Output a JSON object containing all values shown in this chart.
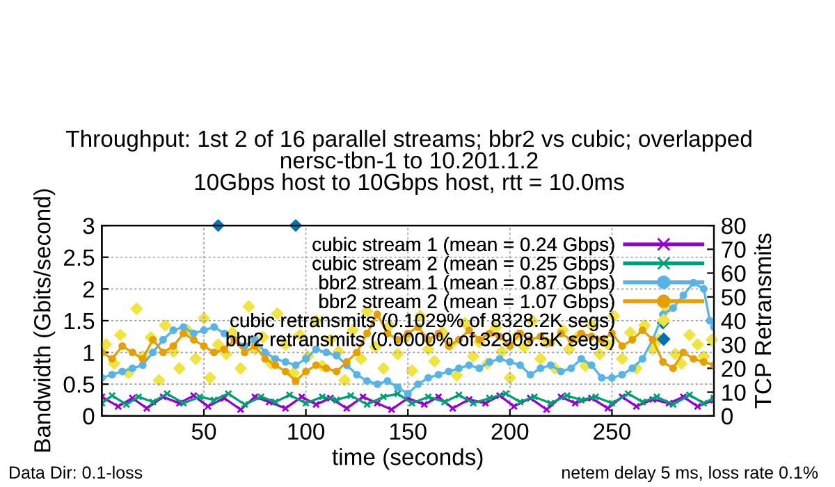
{
  "chart_data": {
    "type": "line",
    "title": "Throughput: 1st 2 of 16 parallel streams; bbr2 vs cubic; overlapped\nnersc-tbn-1 to 10.201.1.2\n10Gbps host to 10Gbps host, rtt = 10.0ms",
    "xlabel": "time (seconds)",
    "ylabel": "Bandwidth (Gbits/second)",
    "y2label": "TCP Retransmits",
    "xlim": [
      0,
      300
    ],
    "xticks": [
      50,
      100,
      150,
      200,
      250
    ],
    "ylim": [
      0,
      3
    ],
    "yticks": [
      0,
      0.5,
      1,
      1.5,
      2,
      2.5,
      3
    ],
    "y2lim": [
      0,
      80
    ],
    "y2ticks": [
      0,
      10,
      20,
      30,
      40,
      50,
      60,
      70,
      80
    ],
    "grid": true,
    "legend": "top right",
    "line_style": "solid",
    "annotations": [
      "Data Dir: 0.1-loss",
      "netem delay 5 ms, loss rate 0.1%"
    ],
    "series": [
      {
        "name": "cubic stream 1 (mean = 0.24 Gbps)",
        "color": "#9400d3",
        "marker": "cross",
        "x": [
          0,
          8,
          15,
          22,
          30,
          38,
          45,
          52,
          60,
          68,
          75,
          82,
          90,
          98,
          105,
          112,
          120,
          128,
          135,
          142,
          150,
          158,
          165,
          172,
          180,
          188,
          195,
          202,
          210,
          218,
          225,
          232,
          240,
          248,
          255,
          262,
          270,
          278,
          285,
          292,
          300
        ],
        "values": [
          0.3,
          0.15,
          0.28,
          0.12,
          0.3,
          0.2,
          0.32,
          0.15,
          0.28,
          0.1,
          0.3,
          0.22,
          0.12,
          0.3,
          0.18,
          0.28,
          0.12,
          0.3,
          0.2,
          0.1,
          0.28,
          0.18,
          0.3,
          0.12,
          0.26,
          0.2,
          0.32,
          0.15,
          0.28,
          0.1,
          0.3,
          0.2,
          0.28,
          0.12,
          0.3,
          0.15,
          0.26,
          0.2,
          0.3,
          0.15,
          0.25
        ]
      },
      {
        "name": "cubic stream 2 (mean = 0.25 Gbps)",
        "color": "#009e73",
        "marker": "cross",
        "x": [
          0,
          5,
          12,
          18,
          25,
          32,
          40,
          48,
          55,
          62,
          70,
          78,
          85,
          92,
          100,
          108,
          115,
          122,
          130,
          138,
          145,
          152,
          160,
          168,
          175,
          182,
          190,
          198,
          205,
          212,
          220,
          228,
          235,
          242,
          250,
          258,
          265,
          272,
          280,
          288,
          295,
          300
        ],
        "values": [
          0.2,
          0.32,
          0.18,
          0.3,
          0.22,
          0.35,
          0.2,
          0.3,
          0.25,
          0.35,
          0.18,
          0.3,
          0.22,
          0.33,
          0.2,
          0.3,
          0.25,
          0.32,
          0.18,
          0.3,
          0.35,
          0.2,
          0.3,
          0.22,
          0.33,
          0.2,
          0.28,
          0.35,
          0.22,
          0.3,
          0.2,
          0.32,
          0.25,
          0.3,
          0.2,
          0.35,
          0.22,
          0.3,
          0.18,
          0.33,
          0.2,
          0.28
        ]
      },
      {
        "name": "bbr2 stream 1 (mean = 0.87 Gbps)",
        "color": "#56b4e9",
        "marker": "circle",
        "x": [
          0,
          5,
          10,
          15,
          20,
          25,
          30,
          35,
          40,
          45,
          50,
          55,
          60,
          65,
          70,
          75,
          80,
          85,
          90,
          95,
          100,
          105,
          110,
          115,
          120,
          125,
          130,
          135,
          140,
          145,
          150,
          155,
          160,
          165,
          170,
          175,
          180,
          185,
          190,
          195,
          200,
          205,
          210,
          215,
          220,
          225,
          230,
          235,
          240,
          245,
          250,
          255,
          260,
          265,
          270,
          275,
          280,
          285,
          290,
          295,
          298,
          300
        ],
        "values": [
          0.6,
          0.65,
          0.7,
          0.75,
          0.8,
          1.0,
          1.2,
          1.35,
          1.4,
          1.3,
          1.35,
          1.4,
          1.3,
          1.2,
          1.1,
          1.2,
          1.0,
          0.9,
          0.85,
          0.8,
          0.9,
          1.05,
          1.0,
          0.95,
          0.8,
          0.65,
          0.55,
          0.5,
          0.55,
          0.45,
          0.35,
          0.5,
          0.6,
          0.65,
          0.7,
          0.75,
          0.8,
          0.75,
          0.85,
          0.9,
          0.85,
          0.8,
          0.65,
          0.75,
          0.8,
          0.7,
          0.75,
          0.9,
          0.8,
          0.6,
          0.6,
          0.65,
          0.75,
          0.9,
          1.2,
          1.6,
          1.7,
          1.9,
          2.1,
          2.0,
          1.5,
          1.4
        ]
      },
      {
        "name": "bbr2 stream 2 (mean = 1.07 Gbps)",
        "color": "#e69f00",
        "marker": "circle",
        "x": [
          0,
          5,
          10,
          15,
          20,
          25,
          30,
          35,
          40,
          45,
          50,
          55,
          60,
          65,
          70,
          75,
          80,
          85,
          90,
          95,
          100,
          105,
          110,
          115,
          120,
          125,
          130,
          135,
          140,
          145,
          150,
          155,
          160,
          165,
          170,
          175,
          180,
          185,
          190,
          195,
          200,
          205,
          210,
          215,
          220,
          225,
          230,
          235,
          240,
          245,
          250,
          255,
          260,
          265,
          270,
          275,
          280,
          285,
          290,
          295,
          300
        ],
        "values": [
          1.0,
          0.9,
          1.1,
          1.0,
          0.9,
          1.2,
          1.0,
          1.1,
          1.3,
          1.2,
          1.1,
          1.0,
          1.05,
          1.2,
          1.0,
          1.1,
          0.9,
          0.8,
          0.7,
          0.55,
          0.7,
          0.8,
          0.75,
          0.7,
          0.85,
          1.0,
          1.3,
          1.6,
          1.3,
          1.2,
          1.3,
          1.4,
          1.2,
          1.3,
          1.1,
          1.2,
          1.35,
          1.2,
          1.3,
          1.25,
          1.1,
          1.3,
          1.2,
          1.25,
          1.15,
          1.3,
          1.2,
          1.3,
          1.25,
          1.2,
          1.3,
          1.1,
          1.2,
          1.35,
          1.2,
          0.85,
          0.75,
          1.0,
          0.9,
          0.85,
          0.8
        ]
      },
      {
        "name": "cubic retransmits (0.1029% of 8328.2K segs)",
        "color": "#f0e442",
        "type": "scatter",
        "marker": "diamond",
        "axis": "y2",
        "x": [
          2,
          6,
          9,
          13,
          17,
          20,
          24,
          28,
          31,
          35,
          38,
          42,
          46,
          50,
          53,
          57,
          61,
          64,
          68,
          72,
          75,
          79,
          83,
          86,
          90,
          94,
          97,
          101,
          105,
          108,
          112,
          116,
          119,
          123,
          127,
          130,
          134,
          138,
          141,
          145,
          149,
          152,
          156,
          160,
          163,
          167,
          171,
          174,
          178,
          182,
          185,
          189,
          193,
          196,
          200,
          204,
          207,
          211,
          215,
          218,
          222,
          226,
          229,
          233,
          237,
          240,
          244,
          248,
          251,
          255,
          259,
          262,
          266,
          270,
          273,
          277,
          281,
          284,
          288,
          292,
          295,
          299
        ],
        "values": [
          30,
          22,
          34,
          18,
          45,
          25,
          33,
          15,
          38,
          27,
          20,
          36,
          24,
          41,
          16,
          30,
          26,
          35,
          20,
          46,
          28,
          33,
          22,
          43,
          30,
          18,
          34,
          25,
          40,
          21,
          32,
          27,
          15,
          36,
          24,
          44,
          29,
          20,
          38,
          26,
          33,
          19,
          42,
          28,
          23,
          35,
          30,
          17,
          39,
          25,
          31,
          22,
          37,
          27,
          16,
          34,
          29,
          40,
          24,
          31,
          20,
          36,
          28,
          33,
          21,
          38,
          26,
          30,
          42,
          24,
          35,
          20,
          38,
          28,
          32,
          45,
          26,
          22,
          34,
          30,
          25,
          32
        ]
      },
      {
        "name": "bbr2 retransmits (0.0000% of 32908.5K segs)",
        "color": "#0072b2",
        "type": "scatter",
        "marker": "diamond",
        "axis": "y2",
        "x": [
          57,
          95,
          275
        ],
        "values": [
          80,
          80,
          39
        ]
      }
    ]
  }
}
